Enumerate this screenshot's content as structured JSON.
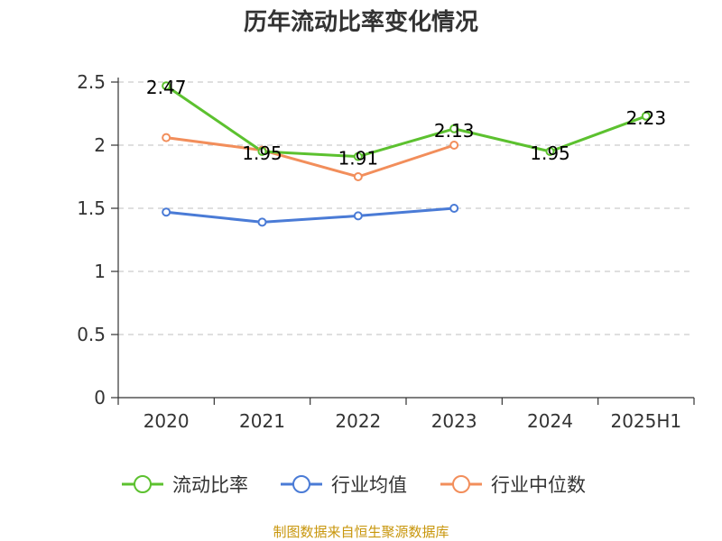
{
  "chart_data": {
    "type": "line",
    "title": "历年流动比率变化情况",
    "categories": [
      "2020",
      "2021",
      "2022",
      "2023",
      "2024",
      "2025H1"
    ],
    "ylim": [
      0,
      2.5
    ],
    "yticks": [
      "0",
      "0.5",
      "1",
      "1.5",
      "2",
      "2.5"
    ],
    "grid": true,
    "legend_position": "bottom",
    "series": [
      {
        "name": "流动比率",
        "color": "#5cc12f",
        "values": [
          2.47,
          1.95,
          1.91,
          2.13,
          1.95,
          2.23
        ],
        "labels": [
          "2.47",
          "1.95",
          "1.91",
          "2.13",
          "1.95",
          "2.23"
        ]
      },
      {
        "name": "行业均值",
        "color": "#4a7bd6",
        "values": [
          1.47,
          1.39,
          1.44,
          1.5,
          null,
          null
        ]
      },
      {
        "name": "行业中位数",
        "color": "#f28e5b",
        "values": [
          2.06,
          1.96,
          1.75,
          2.0,
          null,
          null
        ]
      }
    ]
  },
  "source": {
    "text": "制图数据来自恒生聚源数据库",
    "color": "#c8960c"
  }
}
